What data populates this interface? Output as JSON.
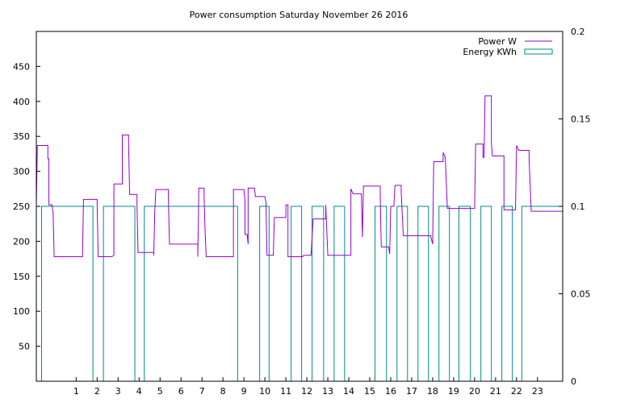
{
  "chart_data": {
    "type": "line",
    "title": "Power consumption Saturday November 26 2016",
    "xlim": [
      -0.9,
      24.2
    ],
    "ylim": [
      0,
      500
    ],
    "y2lim": [
      0,
      0.2
    ],
    "x_ticks": [
      1,
      2,
      3,
      4,
      5,
      6,
      7,
      8,
      9,
      10,
      11,
      12,
      13,
      14,
      15,
      16,
      17,
      18,
      19,
      20,
      21,
      22,
      23
    ],
    "y_ticks": [
      50,
      100,
      150,
      200,
      250,
      300,
      350,
      400,
      450
    ],
    "y2_ticks": [
      0,
      0.05,
      0.1,
      0.15,
      0.2
    ],
    "y2_tick_labels": [
      "0",
      "0.05",
      "0.1",
      "0.15",
      "0.2"
    ],
    "legend_position": "top-right",
    "series": [
      {
        "name": "Power W",
        "axis": "y",
        "color": "#9400d3",
        "style": "step",
        "points": [
          [
            -0.9,
            255
          ],
          [
            -0.85,
            337
          ],
          [
            -0.6,
            337
          ],
          [
            -0.35,
            337
          ],
          [
            -0.35,
            318
          ],
          [
            -0.3,
            318
          ],
          [
            -0.3,
            252
          ],
          [
            -0.15,
            252
          ],
          [
            -0.1,
            240
          ],
          [
            -0.05,
            178
          ],
          [
            1.1,
            178
          ],
          [
            1.3,
            178
          ],
          [
            1.35,
            260
          ],
          [
            2.0,
            260
          ],
          [
            2.0,
            252
          ],
          [
            2.05,
            178
          ],
          [
            2.7,
            178
          ],
          [
            2.8,
            180
          ],
          [
            2.8,
            282
          ],
          [
            3.2,
            282
          ],
          [
            3.2,
            352
          ],
          [
            3.5,
            352
          ],
          [
            3.5,
            340
          ],
          [
            3.55,
            267
          ],
          [
            3.9,
            267
          ],
          [
            3.9,
            252
          ],
          [
            3.95,
            184
          ],
          [
            4.7,
            184
          ],
          [
            4.7,
            180
          ],
          [
            4.75,
            244
          ],
          [
            4.8,
            274
          ],
          [
            5.4,
            274
          ],
          [
            5.4,
            258
          ],
          [
            5.45,
            196
          ],
          [
            6.8,
            196
          ],
          [
            6.8,
            178
          ],
          [
            6.85,
            276
          ],
          [
            7.1,
            276
          ],
          [
            7.1,
            262
          ],
          [
            7.15,
            213
          ],
          [
            7.2,
            178
          ],
          [
            8.5,
            178
          ],
          [
            8.5,
            274
          ],
          [
            9.0,
            274
          ],
          [
            9.05,
            258
          ],
          [
            9.05,
            210
          ],
          [
            9.15,
            210
          ],
          [
            9.2,
            196
          ],
          [
            9.2,
            276
          ],
          [
            9.5,
            276
          ],
          [
            9.55,
            264
          ],
          [
            10.0,
            264
          ],
          [
            10.05,
            255
          ],
          [
            10.1,
            180
          ],
          [
            10.4,
            180
          ],
          [
            10.45,
            234
          ],
          [
            11.0,
            234
          ],
          [
            11.0,
            252
          ],
          [
            11.1,
            252
          ],
          [
            11.1,
            178
          ],
          [
            11.8,
            178
          ],
          [
            11.85,
            180
          ],
          [
            12.2,
            180
          ],
          [
            12.3,
            232
          ],
          [
            12.9,
            232
          ],
          [
            12.9,
            252
          ],
          [
            13.0,
            180
          ],
          [
            14.0,
            180
          ],
          [
            14.1,
            180
          ],
          [
            14.1,
            275
          ],
          [
            14.2,
            268
          ],
          [
            14.6,
            268
          ],
          [
            14.65,
            206
          ],
          [
            14.7,
            279
          ],
          [
            15.5,
            279
          ],
          [
            15.5,
            262
          ],
          [
            15.55,
            192
          ],
          [
            15.9,
            192
          ],
          [
            15.95,
            182
          ],
          [
            16.0,
            250
          ],
          [
            16.15,
            250
          ],
          [
            16.2,
            280
          ],
          [
            16.5,
            280
          ],
          [
            16.5,
            270
          ],
          [
            16.6,
            208
          ],
          [
            17.9,
            208
          ],
          [
            18.0,
            196
          ],
          [
            18.05,
            314
          ],
          [
            18.5,
            314
          ],
          [
            18.5,
            327
          ],
          [
            18.6,
            320
          ],
          [
            18.7,
            247
          ],
          [
            20.0,
            247
          ],
          [
            20.05,
            339
          ],
          [
            20.4,
            339
          ],
          [
            20.4,
            320
          ],
          [
            20.45,
            320
          ],
          [
            20.5,
            408
          ],
          [
            20.8,
            408
          ],
          [
            20.8,
            340
          ],
          [
            20.85,
            322
          ],
          [
            21.4,
            322
          ],
          [
            21.4,
            245
          ],
          [
            21.95,
            245
          ],
          [
            22.0,
            337
          ],
          [
            22.1,
            330
          ],
          [
            22.6,
            330
          ],
          [
            22.6,
            316
          ],
          [
            22.7,
            243
          ],
          [
            24.2,
            243
          ]
        ]
      },
      {
        "name": "Energy KWh",
        "axis": "y2",
        "color": "#008b8b",
        "style": "bars",
        "bars": [
          {
            "x1": -0.65,
            "x2": 1.8,
            "value": 0.1
          },
          {
            "x1": 2.3,
            "x2": 3.8,
            "value": 0.1
          },
          {
            "x1": 4.25,
            "x2": 8.7,
            "value": 0.1
          },
          {
            "x1": 9.75,
            "x2": 10.2,
            "value": 0.1
          },
          {
            "x1": 11.25,
            "x2": 11.75,
            "value": 0.1
          },
          {
            "x1": 12.25,
            "x2": 12.8,
            "value": 0.1
          },
          {
            "x1": 13.3,
            "x2": 13.8,
            "value": 0.1
          },
          {
            "x1": 15.25,
            "x2": 15.8,
            "value": 0.1
          },
          {
            "x1": 16.3,
            "x2": 16.8,
            "value": 0.1
          },
          {
            "x1": 17.3,
            "x2": 17.8,
            "value": 0.1
          },
          {
            "x1": 18.3,
            "x2": 18.8,
            "value": 0.1
          },
          {
            "x1": 19.25,
            "x2": 19.8,
            "value": 0.1
          },
          {
            "x1": 20.3,
            "x2": 20.8,
            "value": 0.1
          },
          {
            "x1": 21.3,
            "x2": 21.8,
            "value": 0.1
          },
          {
            "x1": 22.25,
            "x2": 24.2,
            "value": 0.1
          }
        ]
      }
    ]
  }
}
